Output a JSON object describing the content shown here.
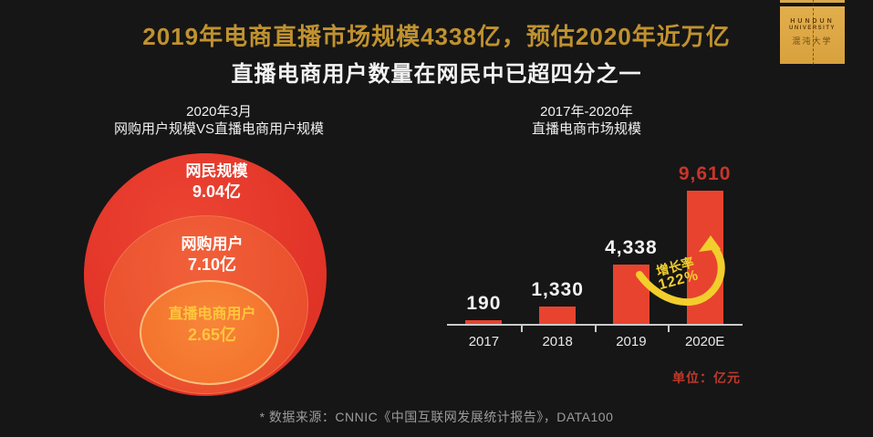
{
  "colors": {
    "background": "#161616",
    "title_gold": "#c0922f",
    "subtitle_white": "#f2f2f2",
    "bar_red": "#e8432f",
    "highlight_red": "#c9352b",
    "unit_red": "#c0392b",
    "arrow_yellow": "#f2ce2d",
    "venn_outer_red": "#e53a2e",
    "venn_middle_orange": "#ee5832",
    "venn_inner_orange": "#f5772f",
    "venn_inner_text_gold": "#ffc63c",
    "logo_gold": "#ddaa45",
    "footer_gray": "#9c9c9c"
  },
  "header": {
    "title": "2019年电商直播市场规模4338亿，预估2020年近万亿",
    "subtitle": "直播电商用户数量在网民中已超四分之一"
  },
  "logo": {
    "name_line1": "HUNDUN",
    "name_line2": "UNIVERSITY",
    "name_cn": "混沌大学"
  },
  "left_panel": {
    "header_line1": "2020年3月",
    "header_line2": "网购用户规模VS直播电商用户规模"
  },
  "right_panel": {
    "header_line1": "2017年-2020年",
    "header_line2": "直播电商市场规模",
    "unit_label": "单位：亿元"
  },
  "chart_data": [
    {
      "type": "pie",
      "subtype": "nested-circles",
      "title": "2020年3月 网购用户规模VS直播电商用户规模",
      "unit": "亿",
      "rings": [
        {
          "label": "网民规模",
          "value": 9.04,
          "value_label": "9.04亿"
        },
        {
          "label": "网购用户",
          "value": 7.1,
          "value_label": "7.10亿"
        },
        {
          "label": "直播电商用户",
          "value": 2.65,
          "value_label": "2.65亿"
        }
      ]
    },
    {
      "type": "bar",
      "title": "2017年-2020年 直播电商市场规模",
      "categories": [
        "2017",
        "2018",
        "2019",
        "2020E"
      ],
      "values": [
        190,
        1330,
        4338,
        9610
      ],
      "value_labels": [
        "190",
        "1,330",
        "4,338",
        "9,610"
      ],
      "value_label_colors": [
        "#f2f2f2",
        "#f2f2f2",
        "#f2f2f2",
        "#c9352b"
      ],
      "bar_color": "#e8432f",
      "ylabel": "亿元",
      "ylim": [
        0,
        9610
      ],
      "grid": false,
      "legend": false,
      "growth_annotation": {
        "label": "增长率",
        "value": "122%"
      }
    }
  ],
  "footer": {
    "source": "* 数据来源：CNNIC《中国互联网发展统计报告》，DATA100"
  }
}
